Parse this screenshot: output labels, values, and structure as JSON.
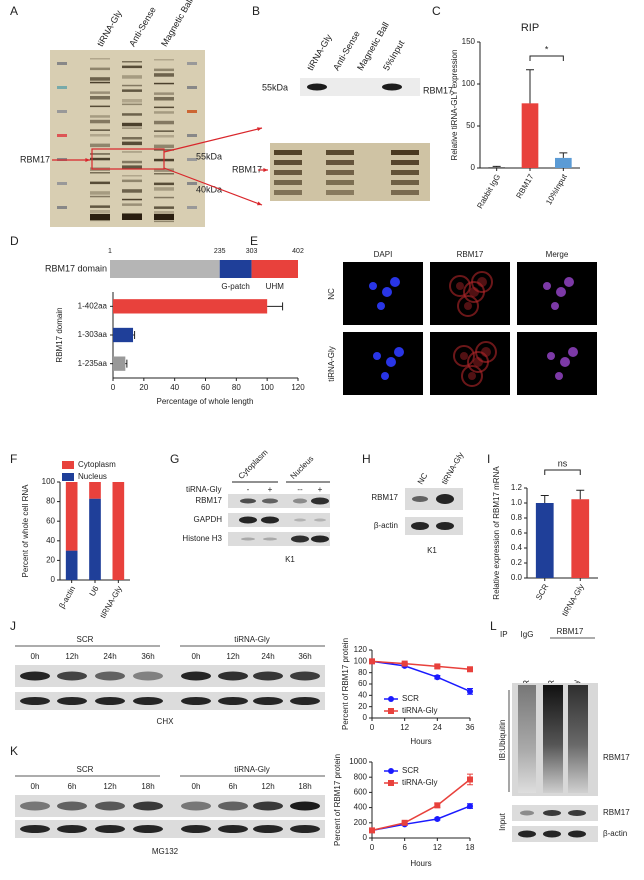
{
  "panel_labels": [
    "A",
    "B",
    "C",
    "D",
    "E",
    "F",
    "G",
    "H",
    "I",
    "J",
    "K",
    "L"
  ],
  "panel_a": {
    "lanes": [
      "tiRNA-Gly",
      "Anti-Sense",
      "Magnetic Ball"
    ],
    "target": "RBM17",
    "markers": [
      "55kDa",
      "40kDa"
    ]
  },
  "panel_b": {
    "lanes": [
      "tiRNA-Gly",
      "Anti-Sense",
      "Magnetic Ball",
      "5%Input"
    ],
    "marker": "55kDa",
    "target": "RBM17",
    "zoom_target": "RBM17"
  },
  "panel_d": {
    "label": "RBM17 domain",
    "boundaries": [
      1,
      235,
      303,
      402
    ],
    "domains": [
      "G-patch",
      "UHM"
    ]
  },
  "panel_e": {
    "columns": [
      "DAPI",
      "RBM17",
      "Merge"
    ],
    "rows": [
      "NC",
      "tiRNA-Gly"
    ]
  },
  "panel_g": {
    "treatment": "tiRNA-Gly",
    "fractions": [
      "Cytoplasm",
      "Nucleus"
    ],
    "signs": [
      "-",
      "+",
      "--",
      "+"
    ],
    "rows": [
      "RBM17",
      "GAPDH",
      "Histone H3"
    ],
    "cell_line": "K1"
  },
  "panel_h": {
    "lanes": [
      "NC",
      "tiRNA-Gly"
    ],
    "rows": [
      "RBM17",
      "β-actin"
    ],
    "cell_line": "K1"
  },
  "panel_j": {
    "groups": [
      "SCR",
      "tiRNA-Gly"
    ],
    "times": [
      "0h",
      "12h",
      "24h",
      "36h"
    ],
    "treatment": "CHX"
  },
  "panel_k": {
    "groups": [
      "SCR",
      "tiRNA-Gly"
    ],
    "times": [
      "0h",
      "6h",
      "12h",
      "18h"
    ],
    "treatment": "MG132"
  },
  "panel_l": {
    "ip": "IP",
    "ip_groups": [
      "IgG",
      "RBM17"
    ],
    "lanes": [
      "SCR",
      "SCR",
      "tiRNA-Gly"
    ],
    "ib": "IB:Ubiquitin",
    "ub_target": "RBM17",
    "input": "Input",
    "input_rows": [
      "RBM17",
      "β-actin"
    ]
  },
  "chart_data": [
    {
      "type": "bar",
      "title": "RIP",
      "y_label": "Relative tiRNA-GLY expression",
      "categories": [
        "Rabbit IgG",
        "RBM17",
        "10%Input"
      ],
      "values": [
        1,
        77,
        12
      ],
      "errors": [
        1,
        40,
        6
      ],
      "colors": [
        "#555555",
        "#e8413c",
        "#5b9bd5"
      ],
      "ylim": [
        0,
        150
      ],
      "yticks": [
        0,
        50,
        100,
        150
      ],
      "annotation": "*"
    },
    {
      "type": "barh",
      "x_label": "Percentage of whole length",
      "y_label": "RBM17 domain",
      "categories": [
        "1-402aa",
        "1-303aa",
        "1-235aa"
      ],
      "values": [
        100,
        13,
        8
      ],
      "errors": [
        10,
        1,
        1
      ],
      "colors": [
        "#e8413c",
        "#1f3f99",
        "#999999"
      ],
      "xlim": [
        0,
        120
      ],
      "xticks": [
        0,
        20,
        40,
        60,
        80,
        100,
        120
      ]
    },
    {
      "type": "stacked_bar",
      "y_label": "Percent of whole cell RNA",
      "categories": [
        "β-actin",
        "U6",
        "tiRNA-Gly"
      ],
      "series": [
        {
          "name": "Cytoplasm",
          "color": "#e8413c",
          "values": [
            70,
            17,
            100
          ]
        },
        {
          "name": "Nucleus",
          "color": "#1f3f99",
          "values": [
            30,
            83,
            0
          ]
        }
      ],
      "ylim": [
        0,
        100
      ],
      "yticks": [
        0,
        20,
        40,
        60,
        80,
        100
      ]
    },
    {
      "type": "bar",
      "y_label": "Relative expression of RBM17 mRNA",
      "categories": [
        "SCR",
        "tiRNA-Gly"
      ],
      "values": [
        1,
        1.05
      ],
      "errors": [
        0.1,
        0.12
      ],
      "colors": [
        "#1f3f99",
        "#e8413c"
      ],
      "ylim": [
        0,
        1.2
      ],
      "yticks": [
        {
          "value": 0,
          "label": "0.0"
        },
        {
          "value": 0.2,
          "label": "0.2"
        },
        {
          "value": 0.4,
          "label": "0.4"
        },
        {
          "value": 0.6,
          "label": "0.6"
        },
        {
          "value": 0.8,
          "label": "0.8"
        },
        {
          "value": 1,
          "label": "1.0"
        },
        {
          "value": 1.2,
          "label": "1.2"
        }
      ],
      "annotation": "ns"
    },
    {
      "type": "line",
      "y_label": "Percent of RBM17 protein",
      "x_label": "Hours",
      "x": [
        0,
        12,
        24,
        36
      ],
      "series": [
        {
          "name": "SCR",
          "color": "#1a1aff",
          "values": [
            100,
            92,
            72,
            47
          ],
          "errors": [
            2,
            2,
            3,
            5
          ]
        },
        {
          "name": "tiRNA-Gly",
          "color": "#e8413c",
          "values": [
            100,
            96,
            91,
            86
          ],
          "errors": [
            2,
            2,
            3,
            3
          ]
        }
      ],
      "xlim": [
        0,
        36
      ],
      "xticks": [
        0,
        12,
        24,
        36
      ],
      "ylim": [
        0,
        120
      ],
      "yticks": [
        0,
        20,
        40,
        60,
        80,
        100,
        120
      ]
    },
    {
      "type": "line",
      "y_label": "Percent of RBM17 protein",
      "x_label": "Hours",
      "x": [
        0,
        6,
        12,
        18
      ],
      "series": [
        {
          "name": "SCR",
          "color": "#1a1aff",
          "values": [
            100,
            180,
            250,
            420
          ],
          "errors": [
            5,
            15,
            15,
            30
          ]
        },
        {
          "name": "tiRNA-Gly",
          "color": "#e8413c",
          "values": [
            100,
            200,
            430,
            770
          ],
          "errors": [
            5,
            20,
            30,
            70
          ]
        }
      ],
      "xlim": [
        0,
        18
      ],
      "xticks": [
        0,
        6,
        12,
        18
      ],
      "ylim": [
        0,
        1000
      ],
      "yticks": [
        0,
        200,
        400,
        600,
        800,
        1000
      ]
    }
  ]
}
